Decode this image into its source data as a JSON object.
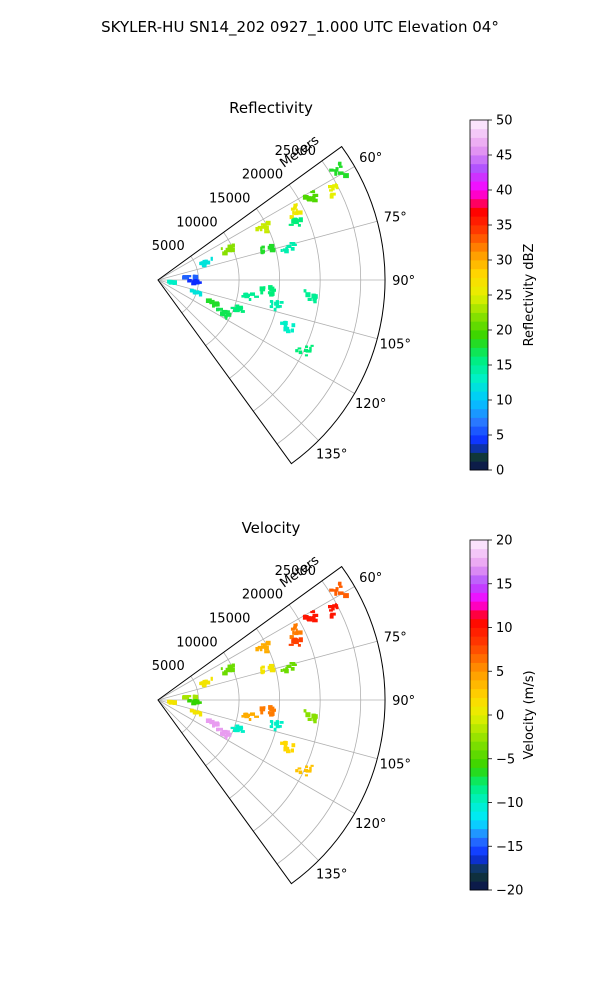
{
  "figure": {
    "title": "SKYLER-HU  SN14_202  0927_1.000 UTC Elevation 04°"
  },
  "chart_data": [
    {
      "type": "polar-sector",
      "title": "Reflectivity",
      "range_axis_label": "Meters",
      "range_ticks": [
        5000,
        10000,
        15000,
        20000,
        25000
      ],
      "range_tick_labels": [
        "5000",
        "10000",
        "15000",
        "20000",
        "25000"
      ],
      "range_max": 28000,
      "azimuth_range": [
        54,
        144
      ],
      "azimuth_ticks": [
        60,
        75,
        90,
        105,
        120,
        135
      ],
      "azimuth_tick_labels": [
        "60°",
        "75°",
        "90°",
        "105°",
        "120°",
        "135°"
      ],
      "grid": true,
      "colorbar": {
        "label": "Reflectivity dBZ",
        "vmin": 0,
        "vmax": 50,
        "ticks": [
          0,
          5,
          10,
          15,
          20,
          25,
          30,
          35,
          40,
          45,
          50
        ],
        "tick_labels": [
          "0",
          "5",
          "10",
          "15",
          "20",
          "25",
          "30",
          "35",
          "40",
          "45",
          "50"
        ]
      },
      "echoes": [
        {
          "az": 62,
          "r": 21500,
          "value": 20
        },
        {
          "az": 63,
          "r": 19000,
          "value": 26
        },
        {
          "az": 63,
          "r": 24500,
          "value": 25
        },
        {
          "az": 59,
          "r": 26000,
          "value": 18
        },
        {
          "az": 68,
          "r": 18500,
          "value": 16
        },
        {
          "az": 64,
          "r": 14500,
          "value": 24
        },
        {
          "az": 66,
          "r": 9500,
          "value": 22
        },
        {
          "az": 74,
          "r": 14000,
          "value": 18
        },
        {
          "az": 76,
          "r": 16500,
          "value": 14
        },
        {
          "az": 70,
          "r": 6500,
          "value": 12
        },
        {
          "az": 84,
          "r": 4000,
          "value": 6
        },
        {
          "az": 92,
          "r": 4500,
          "value": 4
        },
        {
          "az": 98,
          "r": 1800,
          "value": 13
        },
        {
          "az": 108,
          "r": 5000,
          "value": 12
        },
        {
          "az": 113,
          "r": 7200,
          "value": 18
        },
        {
          "az": 117,
          "r": 9000,
          "value": 17
        },
        {
          "az": 110,
          "r": 10500,
          "value": 16
        },
        {
          "az": 100,
          "r": 11500,
          "value": 15
        },
        {
          "az": 95,
          "r": 13500,
          "value": 16
        },
        {
          "az": 102,
          "r": 15000,
          "value": 14
        },
        {
          "az": 110,
          "r": 17000,
          "value": 13
        },
        {
          "az": 115,
          "r": 20000,
          "value": 16
        },
        {
          "az": 96,
          "r": 19000,
          "value": 15
        }
      ]
    },
    {
      "type": "polar-sector",
      "title": "Velocity",
      "range_axis_label": "Meters",
      "range_ticks": [
        5000,
        10000,
        15000,
        20000,
        25000
      ],
      "range_tick_labels": [
        "5000",
        "10000",
        "15000",
        "20000",
        "25000"
      ],
      "range_max": 28000,
      "azimuth_range": [
        54,
        144
      ],
      "azimuth_ticks": [
        60,
        75,
        90,
        105,
        120,
        135
      ],
      "azimuth_tick_labels": [
        "60°",
        "75°",
        "90°",
        "105°",
        "120°",
        "135°"
      ],
      "grid": true,
      "colorbar": {
        "label": "Velocity (m/s)",
        "vmin": -20,
        "vmax": 20,
        "ticks": [
          -20,
          -15,
          -10,
          -5,
          0,
          5,
          10,
          15,
          20
        ],
        "tick_labels": [
          "−20",
          "−15",
          "−10",
          "−5",
          "0",
          "5",
          "10",
          "15",
          "20"
        ]
      },
      "echoes": [
        {
          "az": 62,
          "r": 21500,
          "value": 10
        },
        {
          "az": 63,
          "r": 19000,
          "value": 6
        },
        {
          "az": 63,
          "r": 24500,
          "value": 10
        },
        {
          "az": 59,
          "r": 26000,
          "value": 7
        },
        {
          "az": 68,
          "r": 18500,
          "value": 8
        },
        {
          "az": 64,
          "r": 14500,
          "value": 4
        },
        {
          "az": 66,
          "r": 9500,
          "value": -4
        },
        {
          "az": 74,
          "r": 14000,
          "value": 1
        },
        {
          "az": 76,
          "r": 16500,
          "value": -4
        },
        {
          "az": 70,
          "r": 6500,
          "value": 1
        },
        {
          "az": 84,
          "r": 4000,
          "value": -2
        },
        {
          "az": 92,
          "r": 4500,
          "value": -6
        },
        {
          "az": 98,
          "r": 1800,
          "value": 1
        },
        {
          "az": 108,
          "r": 5000,
          "value": 1
        },
        {
          "az": 113,
          "r": 7200,
          "value": 17
        },
        {
          "az": 117,
          "r": 9000,
          "value": 17
        },
        {
          "az": 110,
          "r": 10500,
          "value": -10
        },
        {
          "az": 100,
          "r": 11500,
          "value": 4
        },
        {
          "az": 95,
          "r": 13500,
          "value": 6
        },
        {
          "az": 102,
          "r": 15000,
          "value": -10
        },
        {
          "az": 110,
          "r": 17000,
          "value": 2
        },
        {
          "az": 115,
          "r": 20000,
          "value": 3
        },
        {
          "az": 96,
          "r": 19000,
          "value": -3
        }
      ]
    }
  ],
  "colormaps": {
    "reflectivity": [
      {
        "v": 0,
        "c": "#0b1050"
      },
      {
        "v": 2,
        "c": "#103a38"
      },
      {
        "v": 4,
        "c": "#0a2cff"
      },
      {
        "v": 7,
        "c": "#2a7bff"
      },
      {
        "v": 10,
        "c": "#00c8ff"
      },
      {
        "v": 13,
        "c": "#00f0c8"
      },
      {
        "v": 16,
        "c": "#00ee7a"
      },
      {
        "v": 19,
        "c": "#33d400"
      },
      {
        "v": 22,
        "c": "#88e000"
      },
      {
        "v": 25,
        "c": "#e6f000"
      },
      {
        "v": 28,
        "c": "#ffd800"
      },
      {
        "v": 31,
        "c": "#ff9800"
      },
      {
        "v": 34,
        "c": "#ff4000"
      },
      {
        "v": 37,
        "c": "#ff0000"
      },
      {
        "v": 40,
        "c": "#ff00ff"
      },
      {
        "v": 43,
        "c": "#b050ff"
      },
      {
        "v": 46,
        "c": "#e89cf0"
      },
      {
        "v": 50,
        "c": "#fff0ff"
      }
    ],
    "velocity": [
      {
        "v": -20,
        "c": "#0b1050"
      },
      {
        "v": -18,
        "c": "#103a38"
      },
      {
        "v": -16,
        "c": "#0a2cff"
      },
      {
        "v": -14,
        "c": "#2a7bff"
      },
      {
        "v": -12,
        "c": "#00e8ff"
      },
      {
        "v": -10,
        "c": "#00f0c8"
      },
      {
        "v": -8,
        "c": "#00ee7a"
      },
      {
        "v": -6,
        "c": "#33d400"
      },
      {
        "v": -3,
        "c": "#88e000"
      },
      {
        "v": 0,
        "c": "#e6f000"
      },
      {
        "v": 2,
        "c": "#ffd800"
      },
      {
        "v": 5,
        "c": "#ff9800"
      },
      {
        "v": 8,
        "c": "#ff4000"
      },
      {
        "v": 11,
        "c": "#ff0000"
      },
      {
        "v": 13,
        "c": "#ff00ff"
      },
      {
        "v": 15,
        "c": "#b050ff"
      },
      {
        "v": 17,
        "c": "#e89cf0"
      },
      {
        "v": 20,
        "c": "#fff0ff"
      }
    ]
  }
}
